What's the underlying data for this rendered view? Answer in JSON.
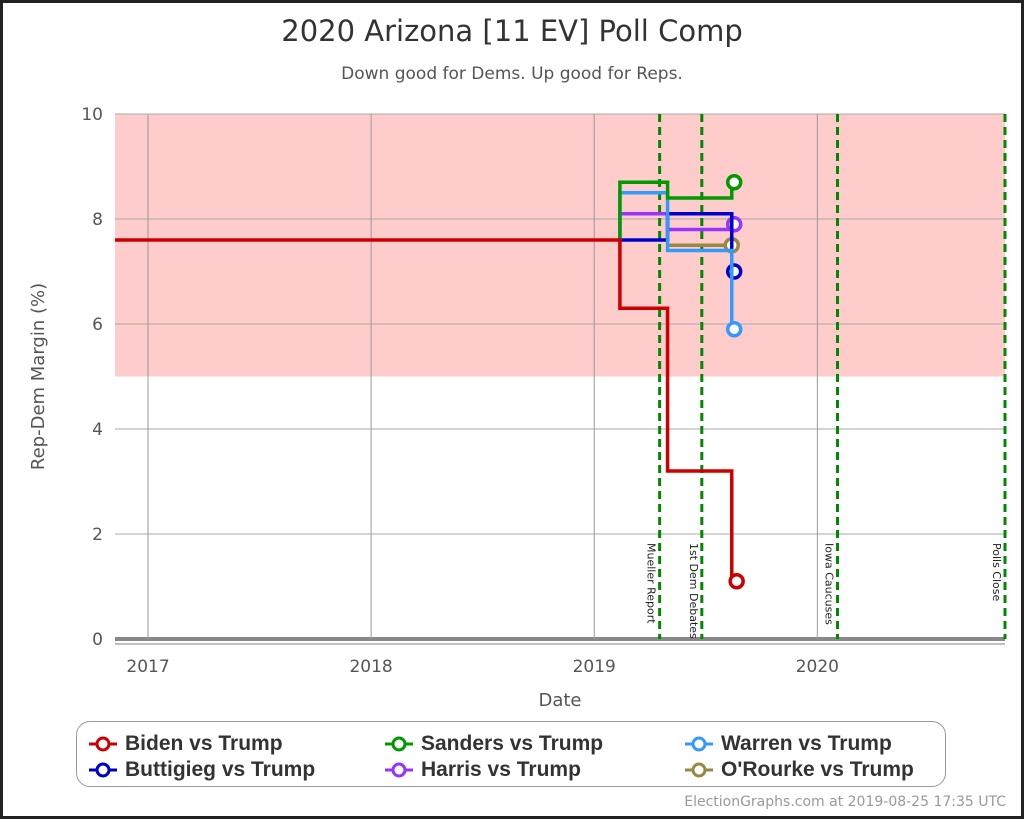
{
  "chart_data": {
    "type": "line",
    "step": true,
    "title": "2020 Arizona [11 EV] Poll Comp",
    "subtitle": "Down good for Dems. Up good for Reps.",
    "xlabel": "Date",
    "ylabel": "Rep-Dem Margin (%)",
    "xlim": [
      "2016-11-08",
      "2020-11-03"
    ],
    "ylim": [
      0,
      10
    ],
    "xticks": [
      {
        "date": "2017-01-01",
        "label": "2017"
      },
      {
        "date": "2018-01-01",
        "label": "2018"
      },
      {
        "date": "2019-01-01",
        "label": "2019"
      },
      {
        "date": "2020-01-01",
        "label": "2020"
      }
    ],
    "yticks": [
      "0",
      "2",
      "4",
      "6",
      "8",
      "10"
    ],
    "grid": true,
    "shaded_band": {
      "from": 5,
      "to": 10,
      "color": "#ffcccc"
    },
    "events": [
      {
        "date": "2019-04-18",
        "label": "Mueller Report"
      },
      {
        "date": "2019-06-26",
        "label": "1st Dem Debates"
      },
      {
        "date": "2020-02-03",
        "label": "Iowa Caucuses"
      },
      {
        "date": "2020-11-03",
        "label": "Polls Close"
      }
    ],
    "event_color": "#008800",
    "legend_position": "bottom",
    "series": [
      {
        "name": "Biden vs Trump",
        "color": "#cc0000",
        "points": [
          [
            "2016-11-08",
            7.6
          ],
          [
            "2019-02-12",
            6.3
          ],
          [
            "2019-05-01",
            3.2
          ],
          [
            "2019-08-14",
            1.1
          ],
          [
            "2019-08-22",
            1.1
          ]
        ]
      },
      {
        "name": "Sanders vs Trump",
        "color": "#009900",
        "points": [
          [
            "2019-02-12",
            7.6
          ],
          [
            "2019-02-12",
            8.7
          ],
          [
            "2019-05-01",
            8.4
          ],
          [
            "2019-08-14",
            8.7
          ],
          [
            "2019-08-18",
            8.7
          ]
        ]
      },
      {
        "name": "Warren vs Trump",
        "color": "#3399ff",
        "points": [
          [
            "2019-02-12",
            7.6
          ],
          [
            "2019-02-12",
            8.5
          ],
          [
            "2019-05-01",
            7.4
          ],
          [
            "2019-08-14",
            5.9
          ],
          [
            "2019-08-18",
            5.9
          ]
        ]
      },
      {
        "name": "Buttigieg vs Trump",
        "color": "#0000cc",
        "points": [
          [
            "2019-02-12",
            7.6
          ],
          [
            "2019-05-01",
            8.1
          ],
          [
            "2019-08-14",
            7.0
          ],
          [
            "2019-08-18",
            7.0
          ]
        ]
      },
      {
        "name": "Harris vs Trump",
        "color": "#9933ff",
        "points": [
          [
            "2019-02-12",
            7.6
          ],
          [
            "2019-02-12",
            8.1
          ],
          [
            "2019-05-01",
            7.8
          ],
          [
            "2019-08-14",
            7.9
          ],
          [
            "2019-08-18",
            7.9
          ]
        ]
      },
      {
        "name": "O'Rourke vs Trump",
        "color": "#998844",
        "points": [
          [
            "2019-05-01",
            7.5
          ],
          [
            "2019-08-14",
            7.5
          ]
        ]
      }
    ]
  },
  "footer": {
    "credit": "ElectionGraphs.com at 2019-08-25 17:35 UTC"
  }
}
